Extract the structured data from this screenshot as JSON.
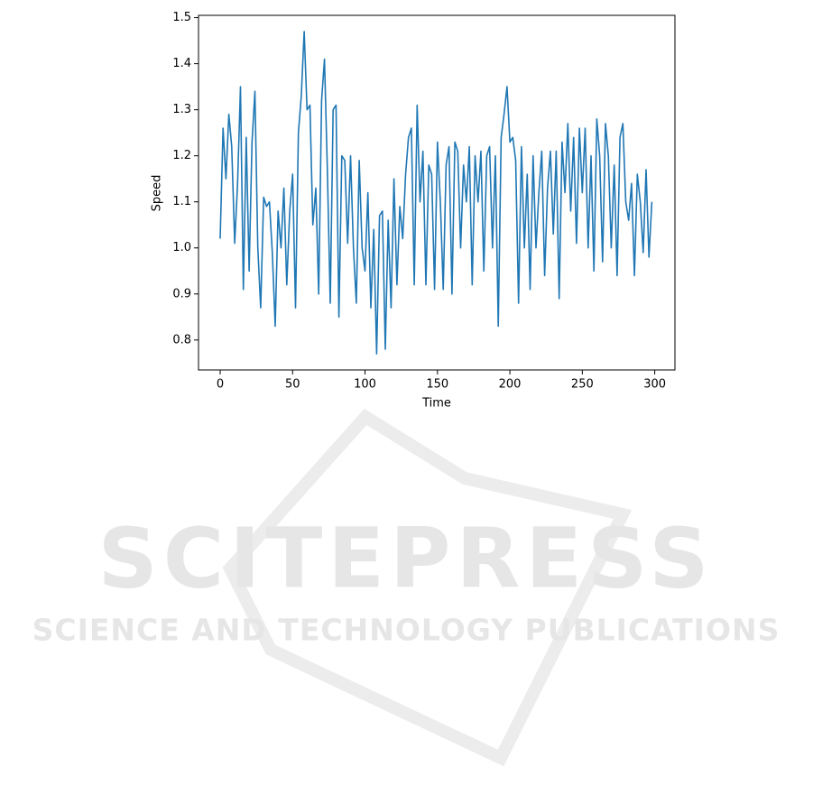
{
  "chart_data": {
    "type": "line",
    "xlabel": "Time",
    "ylabel": "Speed",
    "x": [
      0,
      2,
      4,
      6,
      8,
      10,
      12,
      14,
      16,
      18,
      20,
      22,
      24,
      26,
      28,
      30,
      32,
      34,
      36,
      38,
      40,
      42,
      44,
      46,
      48,
      50,
      52,
      54,
      56,
      58,
      60,
      62,
      64,
      66,
      68,
      70,
      72,
      74,
      76,
      78,
      80,
      82,
      84,
      86,
      88,
      90,
      92,
      94,
      96,
      98,
      100,
      102,
      104,
      106,
      108,
      110,
      112,
      114,
      116,
      118,
      120,
      122,
      124,
      126,
      128,
      130,
      132,
      134,
      136,
      138,
      140,
      142,
      144,
      146,
      148,
      150,
      152,
      154,
      156,
      158,
      160,
      162,
      164,
      166,
      168,
      170,
      172,
      174,
      176,
      178,
      180,
      182,
      184,
      186,
      188,
      190,
      192,
      194,
      196,
      198,
      200,
      202,
      204,
      206,
      208,
      210,
      212,
      214,
      216,
      218,
      220,
      222,
      224,
      226,
      228,
      230,
      232,
      234,
      236,
      238,
      240,
      242,
      244,
      246,
      248,
      250,
      252,
      254,
      256,
      258,
      260,
      262,
      264,
      266,
      268,
      270,
      272,
      274,
      276,
      278,
      280,
      282,
      284,
      286,
      288,
      290,
      292,
      294,
      296,
      298
    ],
    "series": [
      {
        "color": "#1f77b4",
        "values": [
          1.02,
          1.26,
          1.15,
          1.29,
          1.22,
          1.01,
          1.14,
          1.35,
          0.91,
          1.24,
          0.95,
          1.23,
          1.34,
          1.0,
          0.87,
          1.11,
          1.09,
          1.1,
          0.99,
          0.83,
          1.08,
          1.0,
          1.13,
          0.92,
          1.08,
          1.16,
          0.87,
          1.25,
          1.33,
          1.47,
          1.3,
          1.31,
          1.05,
          1.13,
          0.9,
          1.32,
          1.41,
          1.17,
          0.88,
          1.3,
          1.31,
          0.85,
          1.2,
          1.19,
          1.01,
          1.2,
          1.0,
          0.88,
          1.19,
          1.0,
          0.95,
          1.12,
          0.87,
          1.04,
          0.77,
          1.07,
          1.08,
          0.78,
          1.06,
          0.87,
          1.15,
          0.92,
          1.09,
          1.02,
          1.16,
          1.24,
          1.26,
          0.92,
          1.31,
          1.1,
          1.21,
          0.92,
          1.18,
          1.16,
          0.91,
          1.23,
          1.1,
          0.91,
          1.18,
          1.22,
          0.9,
          1.23,
          1.21,
          1.0,
          1.18,
          1.1,
          1.22,
          0.92,
          1.2,
          1.1,
          1.21,
          0.95,
          1.2,
          1.22,
          1.0,
          1.2,
          0.83,
          1.24,
          1.29,
          1.35,
          1.23,
          1.24,
          1.19,
          0.88,
          1.22,
          1.0,
          1.16,
          0.91,
          1.2,
          1.0,
          1.12,
          1.21,
          0.94,
          1.13,
          1.21,
          1.03,
          1.21,
          0.89,
          1.23,
          1.12,
          1.27,
          1.08,
          1.24,
          1.01,
          1.26,
          1.12,
          1.26,
          1.0,
          1.2,
          0.95,
          1.28,
          1.2,
          0.97,
          1.27,
          1.2,
          1.0,
          1.18,
          0.94,
          1.24,
          1.27,
          1.1,
          1.06,
          1.14,
          0.94,
          1.16,
          1.1,
          0.99,
          1.17,
          0.98,
          1.1
        ]
      }
    ],
    "xlim": [
      -14.95,
      313.95
    ],
    "xticks": [
      0,
      50,
      100,
      150,
      200,
      250,
      300
    ],
    "ylim": [
      0.735,
      1.505
    ],
    "yticks": [
      0.8,
      0.9,
      {
        "value": 1,
        "label": "1.0"
      },
      1.1,
      1.2,
      1.3,
      1.4,
      1.5
    ]
  },
  "watermark": {
    "title": "SCITEPRESS",
    "subtitle": "SCIENCE AND TECHNOLOGY PUBLICATIONS"
  }
}
